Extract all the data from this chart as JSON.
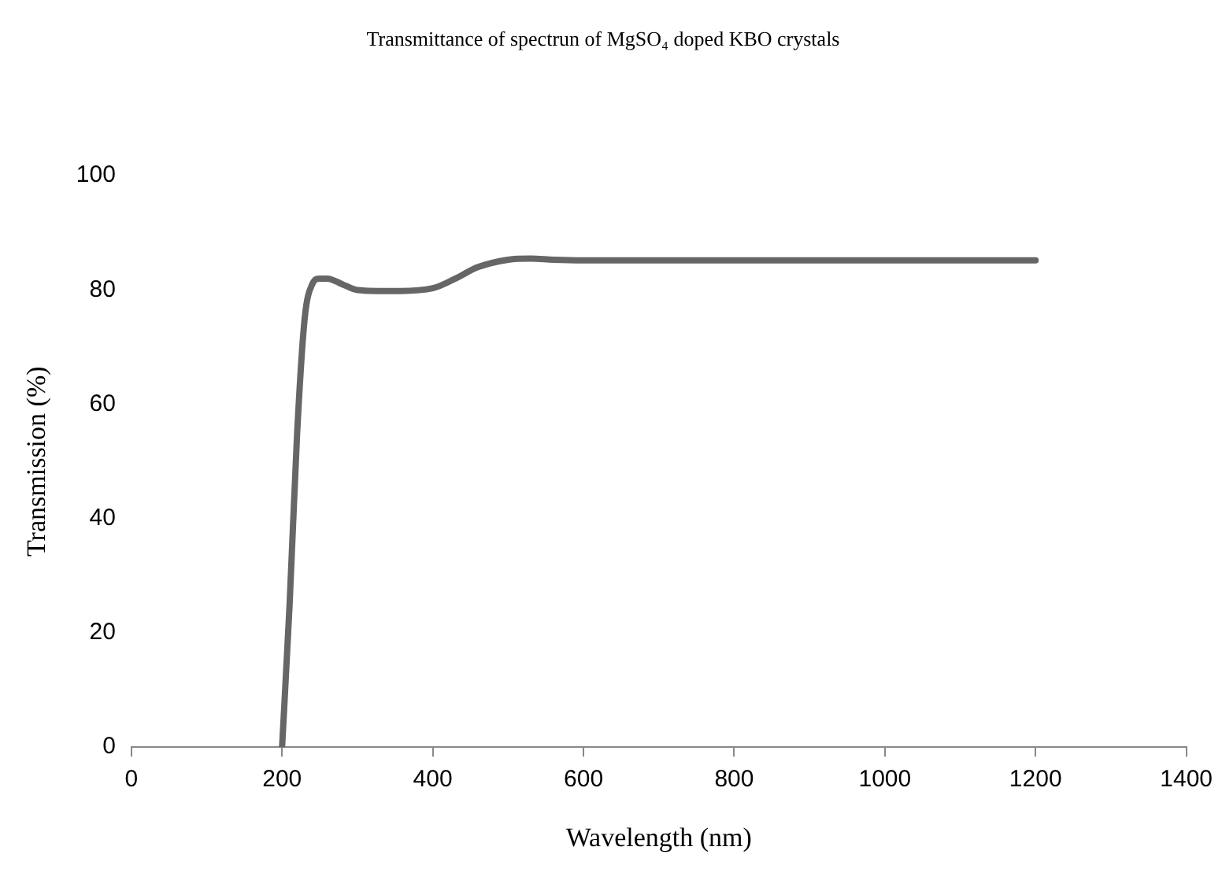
{
  "chart_data": {
    "type": "line",
    "title": "Transmittance of spectrun of MgSO₄ doped KBO crystals",
    "xlabel": "Wavelength (nm)",
    "ylabel": "Transmission (%)",
    "x": [
      200,
      210,
      220,
      230,
      240,
      250,
      260,
      280,
      300,
      350,
      400,
      430,
      460,
      500,
      530,
      560,
      600,
      700,
      800,
      900,
      1000,
      1100,
      1200
    ],
    "series": [
      {
        "color": "#666666",
        "values": [
          0,
          25,
          55,
          75,
          81,
          82,
          82,
          81,
          80,
          79.8,
          80.3,
          82,
          84,
          85.3,
          85.5,
          85.3,
          85.2,
          85.2,
          85.2,
          85.2,
          85.2,
          85.2,
          85.2
        ]
      }
    ],
    "xlim": [
      0,
      1400
    ],
    "xticks": [
      0,
      200,
      400,
      600,
      800,
      1000,
      1200,
      1400
    ],
    "ylim": [
      0,
      100
    ],
    "yticks": [
      0,
      20,
      40,
      60,
      80,
      100
    ],
    "grid": false,
    "legend": false,
    "marker": "none",
    "line_style": "solid"
  }
}
